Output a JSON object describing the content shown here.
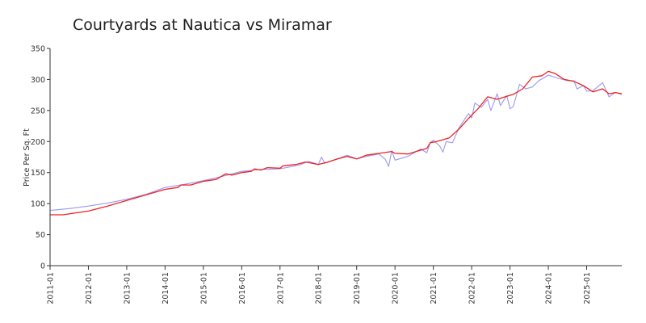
{
  "chart_data": {
    "type": "line",
    "title": "Courtyards at Nautica vs Miramar",
    "xlabel": "",
    "ylabel": "Price Per Sq. Ft",
    "ylim": [
      0,
      350
    ],
    "yticks": [
      0,
      50,
      100,
      150,
      200,
      250,
      300,
      350
    ],
    "xlim": [
      "2011-01",
      "2025-12"
    ],
    "xticks": [
      "2011-01",
      "2012-01",
      "2013-01",
      "2014-01",
      "2015-01",
      "2016-01",
      "2017-01",
      "2018-01",
      "2019-01",
      "2020-01",
      "2021-01",
      "2022-01",
      "2023-01",
      "2024-01",
      "2025-01"
    ],
    "grid": false,
    "legend": "none",
    "series": [
      {
        "color": "#9999ee",
        "points": [
          [
            "2011-01",
            89
          ],
          [
            "2011-07",
            92
          ],
          [
            "2012-01",
            96
          ],
          [
            "2012-07",
            101
          ],
          [
            "2013-01",
            107
          ],
          [
            "2013-07",
            115
          ],
          [
            "2014-01",
            126
          ],
          [
            "2014-07",
            131
          ],
          [
            "2015-01",
            137
          ],
          [
            "2015-07",
            144
          ],
          [
            "2016-01",
            152
          ],
          [
            "2016-07",
            155
          ],
          [
            "2017-01",
            156
          ],
          [
            "2017-07",
            162
          ],
          [
            "2017-10",
            168
          ],
          [
            "2018-01",
            163
          ],
          [
            "2018-02",
            175
          ],
          [
            "2018-03",
            165
          ],
          [
            "2018-07",
            172
          ],
          [
            "2018-10",
            178
          ],
          [
            "2019-01",
            172
          ],
          [
            "2019-04",
            176
          ],
          [
            "2019-08",
            180
          ],
          [
            "2019-10",
            171
          ],
          [
            "2019-11",
            160
          ],
          [
            "2019-12",
            185
          ],
          [
            "2020-01",
            170
          ],
          [
            "2020-05",
            176
          ],
          [
            "2020-09",
            188
          ],
          [
            "2020-11",
            182
          ],
          [
            "2020-12",
            198
          ],
          [
            "2021-01",
            202
          ],
          [
            "2021-03",
            193
          ],
          [
            "2021-04",
            183
          ],
          [
            "2021-05",
            200
          ],
          [
            "2021-07",
            198
          ],
          [
            "2021-09",
            222
          ],
          [
            "2021-12",
            245
          ],
          [
            "2022-01",
            238
          ],
          [
            "2022-02",
            262
          ],
          [
            "2022-04",
            255
          ],
          [
            "2022-06",
            268
          ],
          [
            "2022-07",
            250
          ],
          [
            "2022-09",
            277
          ],
          [
            "2022-10",
            258
          ],
          [
            "2022-12",
            274
          ],
          [
            "2023-01",
            253
          ],
          [
            "2023-02",
            256
          ],
          [
            "2023-04",
            292
          ],
          [
            "2023-06",
            285
          ],
          [
            "2023-08",
            288
          ],
          [
            "2023-10",
            298
          ],
          [
            "2024-01",
            307
          ],
          [
            "2024-04",
            302
          ],
          [
            "2024-07",
            298
          ],
          [
            "2024-09",
            298
          ],
          [
            "2024-10",
            285
          ],
          [
            "2024-12",
            290
          ],
          [
            "2025-01",
            281
          ],
          [
            "2025-03",
            282
          ],
          [
            "2025-06",
            295
          ],
          [
            "2025-08",
            272
          ],
          [
            "2025-10",
            279
          ],
          [
            "2025-12",
            276
          ]
        ]
      },
      {
        "color": "#ee2222",
        "points": [
          [
            "2011-01",
            82
          ],
          [
            "2011-05",
            82
          ],
          [
            "2012-01",
            88
          ],
          [
            "2012-07",
            96
          ],
          [
            "2013-01",
            105
          ],
          [
            "2013-07",
            114
          ],
          [
            "2014-01",
            123
          ],
          [
            "2014-05",
            126
          ],
          [
            "2014-06",
            130
          ],
          [
            "2014-09",
            130
          ],
          [
            "2015-01",
            136
          ],
          [
            "2015-05",
            139
          ],
          [
            "2015-08",
            148
          ],
          [
            "2015-10",
            146
          ],
          [
            "2016-01",
            150
          ],
          [
            "2016-04",
            152
          ],
          [
            "2016-05",
            156
          ],
          [
            "2016-07",
            154
          ],
          [
            "2016-09",
            158
          ],
          [
            "2017-01",
            157
          ],
          [
            "2017-02",
            161
          ],
          [
            "2017-06",
            163
          ],
          [
            "2017-09",
            167
          ],
          [
            "2018-01",
            163
          ],
          [
            "2018-04",
            167
          ],
          [
            "2018-07",
            172
          ],
          [
            "2018-10",
            176
          ],
          [
            "2019-01",
            172
          ],
          [
            "2019-04",
            178
          ],
          [
            "2019-08",
            181
          ],
          [
            "2019-12",
            184
          ],
          [
            "2020-01",
            181
          ],
          [
            "2020-05",
            180
          ],
          [
            "2020-09",
            186
          ],
          [
            "2020-11",
            189
          ],
          [
            "2020-12",
            198
          ],
          [
            "2021-02",
            200
          ],
          [
            "2021-06",
            206
          ],
          [
            "2021-09",
            220
          ],
          [
            "2021-12",
            237
          ],
          [
            "2022-03",
            253
          ],
          [
            "2022-06",
            272
          ],
          [
            "2022-09",
            268
          ],
          [
            "2022-12",
            273
          ],
          [
            "2023-02",
            276
          ],
          [
            "2023-05",
            285
          ],
          [
            "2023-08",
            304
          ],
          [
            "2023-11",
            306
          ],
          [
            "2024-01",
            313
          ],
          [
            "2024-03",
            310
          ],
          [
            "2024-06",
            300
          ],
          [
            "2024-09",
            297
          ],
          [
            "2024-12",
            290
          ],
          [
            "2025-03",
            280
          ],
          [
            "2025-06",
            285
          ],
          [
            "2025-08",
            277
          ],
          [
            "2025-10",
            279
          ],
          [
            "2025-12",
            277
          ]
        ]
      }
    ]
  }
}
